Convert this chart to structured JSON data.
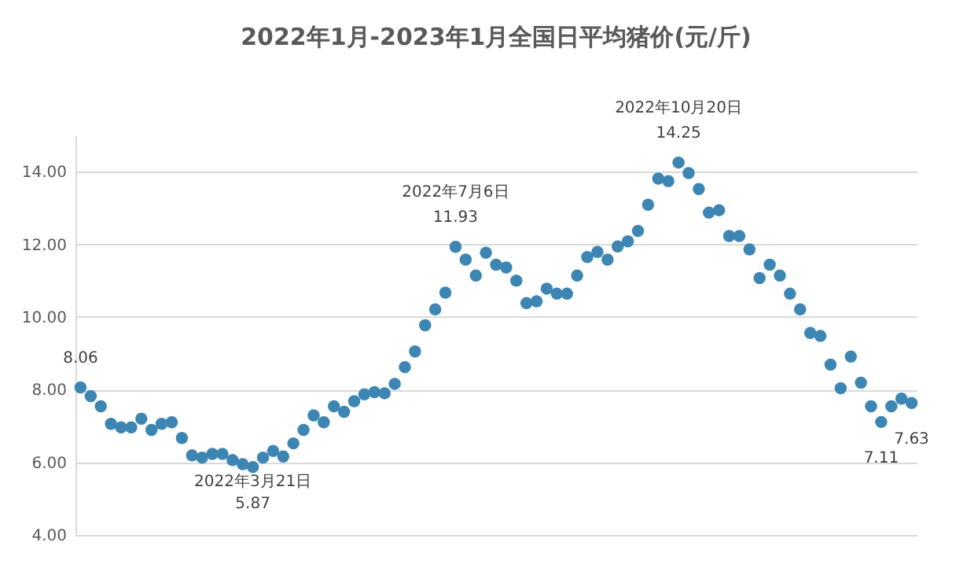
{
  "chart_data": {
    "type": "scatter",
    "title": "2022年1月-2023年1月全国日平均猪价(元/斤)",
    "categories": [
      null,
      null,
      null,
      null,
      null,
      null,
      null,
      null,
      null,
      null,
      null,
      null,
      null,
      null,
      null,
      null,
      null,
      null,
      null,
      null,
      null,
      null,
      null,
      null,
      null,
      null,
      null,
      null,
      null,
      null,
      null,
      null,
      null,
      null,
      null,
      null,
      null,
      null,
      null,
      null,
      null,
      null,
      null,
      null,
      null,
      null,
      null,
      null,
      null,
      null,
      null,
      null,
      null,
      null,
      null,
      null,
      null,
      null,
      null,
      null,
      null,
      null,
      null,
      null,
      null,
      null,
      null,
      null,
      null,
      null,
      null,
      null,
      null,
      null,
      null,
      null,
      null,
      null,
      null,
      null,
      null,
      null,
      null
    ],
    "values": [
      8.06,
      7.82,
      7.54,
      7.06,
      6.96,
      6.96,
      7.2,
      6.89,
      7.06,
      7.1,
      6.67,
      6.19,
      6.13,
      6.23,
      6.23,
      6.06,
      5.95,
      5.87,
      6.13,
      6.31,
      6.16,
      6.52,
      6.89,
      7.29,
      7.1,
      7.54,
      7.39,
      7.68,
      7.87,
      7.93,
      7.9,
      8.16,
      8.62,
      9.05,
      9.77,
      10.21,
      10.67,
      11.93,
      11.58,
      11.14,
      11.77,
      11.44,
      11.36,
      11.0,
      10.38,
      10.43,
      10.78,
      10.64,
      10.64,
      11.14,
      11.65,
      11.79,
      11.58,
      11.94,
      12.08,
      12.37,
      13.09,
      13.81,
      13.74,
      14.25,
      13.96,
      13.52,
      12.87,
      12.94,
      12.23,
      12.23,
      11.86,
      11.07,
      11.44,
      11.14,
      10.64,
      10.21,
      9.56,
      9.48,
      8.69,
      8.04,
      8.91,
      8.19,
      7.54,
      7.11,
      7.54,
      7.75,
      7.63
    ],
    "value_labels": [
      "8.06",
      null,
      null,
      null,
      null,
      null,
      null,
      null,
      null,
      null,
      null,
      null,
      null,
      null,
      null,
      null,
      null,
      "5.87",
      null,
      null,
      null,
      null,
      null,
      null,
      null,
      null,
      null,
      null,
      null,
      null,
      null,
      null,
      null,
      null,
      null,
      null,
      null,
      "11.93",
      null,
      null,
      null,
      null,
      null,
      null,
      null,
      null,
      null,
      null,
      null,
      null,
      null,
      null,
      null,
      null,
      null,
      null,
      null,
      null,
      null,
      "14.25",
      null,
      null,
      null,
      null,
      null,
      null,
      null,
      null,
      null,
      null,
      null,
      null,
      null,
      null,
      null,
      null,
      null,
      null,
      null,
      "7.11",
      null,
      null,
      "7.63"
    ],
    "color": "#3d86b4",
    "marker": "circle",
    "ylim": [
      4,
      15
    ],
    "yticks": [
      {
        "value": 4,
        "label": "4.00"
      },
      {
        "value": 6,
        "label": "6.00"
      },
      {
        "value": 8,
        "label": "8.00"
      },
      {
        "value": 10,
        "label": "10.00"
      },
      {
        "value": 12,
        "label": "12.00"
      },
      {
        "value": 14,
        "label": "14.00"
      }
    ],
    "annotations": [
      {
        "text": "2022年3月21日",
        "y": 5.87
      },
      {
        "text": "2022年7月6日",
        "y": 11.93
      },
      {
        "text": "2022年10月20日",
        "y": 14.25
      }
    ],
    "grid": "y",
    "tick_labels": "y"
  }
}
